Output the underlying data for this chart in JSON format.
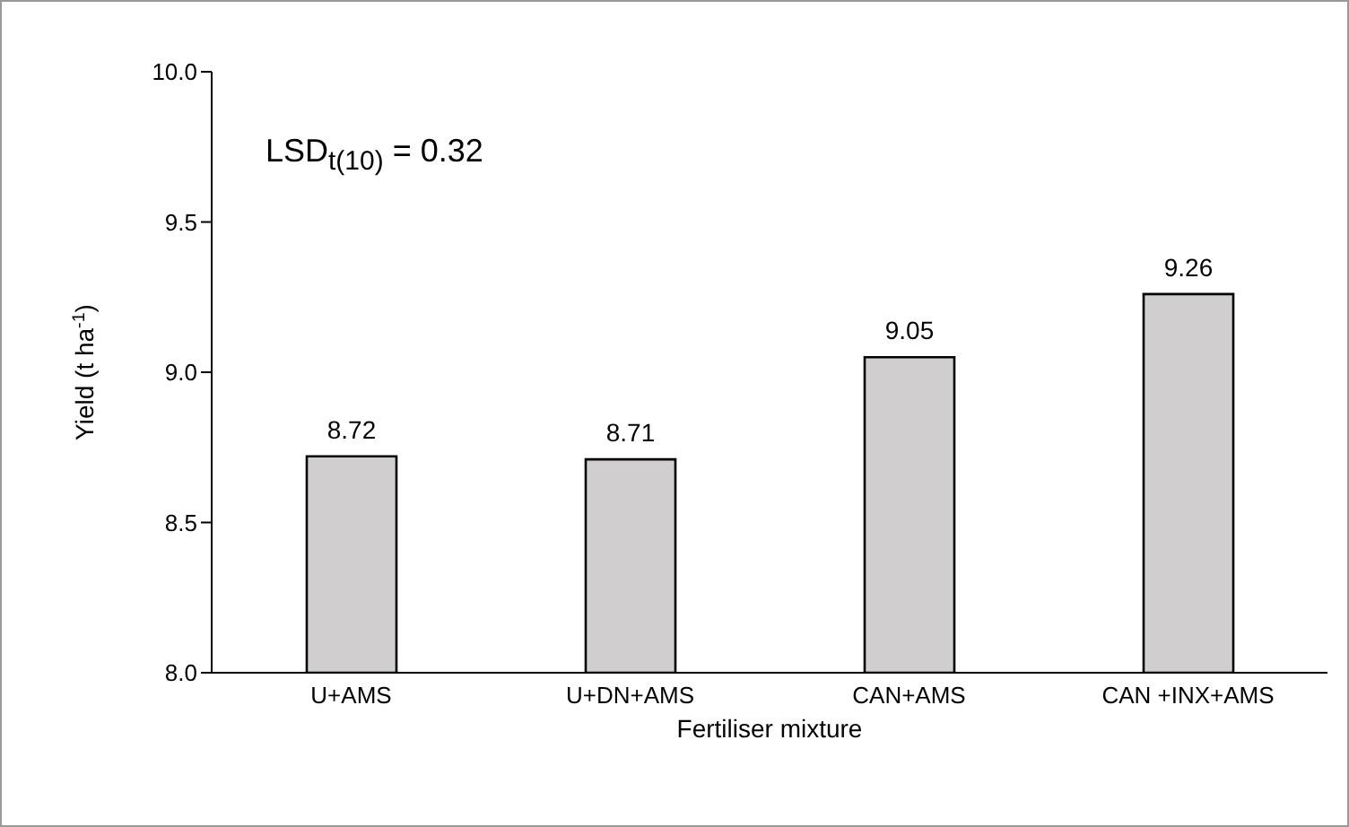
{
  "chart_data": {
    "type": "bar",
    "xlabel": "Fertiliser mixture",
    "ylabel": "Yield (t ha$^{-1}$)",
    "categories": [
      "U+AMS",
      "U+DN+AMS",
      "CAN+AMS",
      "CAN +INX+AMS"
    ],
    "values": [
      8.72,
      8.71,
      9.05,
      9.26
    ],
    "color": "#d0cece",
    "ylim": [
      8,
      10
    ],
    "yticks": [
      {
        "value": 8,
        "label": "8.0"
      },
      {
        "value": 8.5,
        "label": "8.5"
      },
      {
        "value": 9,
        "label": "9.0"
      },
      {
        "value": 9.5,
        "label": "9.5"
      },
      {
        "value": 10,
        "label": "10.0"
      }
    ],
    "grid": false,
    "data_labels": true,
    "annotations": [
      "LSD$_{t(10)}$ = 0.32"
    ]
  }
}
